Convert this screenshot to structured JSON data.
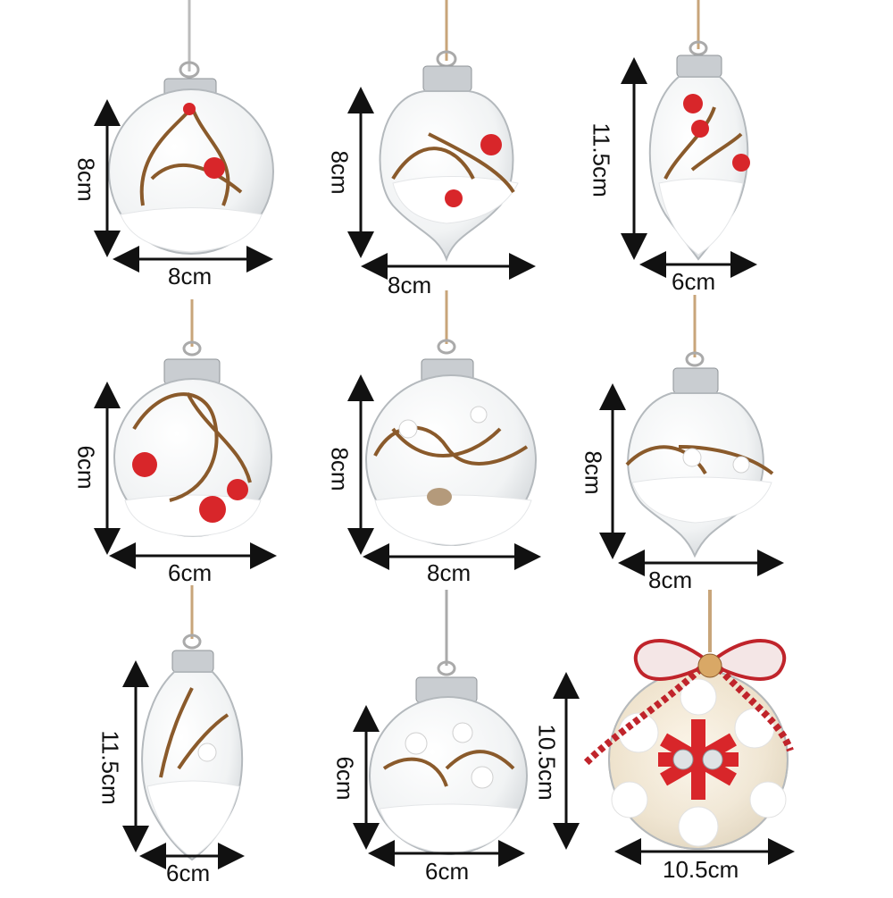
{
  "colors": {
    "glass": "#eef0f1",
    "glass_edge": "#9aa0a4",
    "cap": "#c8ccd0",
    "twig": "#8a5a2b",
    "berry": "#d8262a",
    "snow": "#ffffff",
    "string": "#c8a57a",
    "ribbon": "#c0242b",
    "arrow": "#111111"
  },
  "ornaments": [
    {
      "shape": "round",
      "filling": "twigs-red-berries-snow",
      "height_label": "8cm",
      "width_label": "8cm"
    },
    {
      "shape": "onion",
      "filling": "twigs-red-berries-snow",
      "height_label": "8cm",
      "width_label": "8cm"
    },
    {
      "shape": "drop",
      "filling": "twigs-red-berries-snow",
      "height_label": "11.5cm",
      "width_label": "6cm"
    },
    {
      "shape": "round",
      "filling": "twigs-red-berries-snow",
      "height_label": "6cm",
      "width_label": "6cm"
    },
    {
      "shape": "round",
      "filling": "twigs-white-berries-snow",
      "height_label": "8cm",
      "width_label": "8cm"
    },
    {
      "shape": "onion",
      "filling": "twigs-white-berries-snow",
      "height_label": "8cm",
      "width_label": "8cm"
    },
    {
      "shape": "drop",
      "filling": "twigs-white-berries-snow",
      "height_label": "11.5cm",
      "width_label": "6cm"
    },
    {
      "shape": "round",
      "filling": "twigs-white-berries-snow",
      "height_label": "6cm",
      "width_label": "6cm"
    },
    {
      "shape": "round-bow",
      "filling": "wooden-snowflake-bells",
      "height_label": "10.5cm",
      "width_label": "10.5cm"
    }
  ]
}
